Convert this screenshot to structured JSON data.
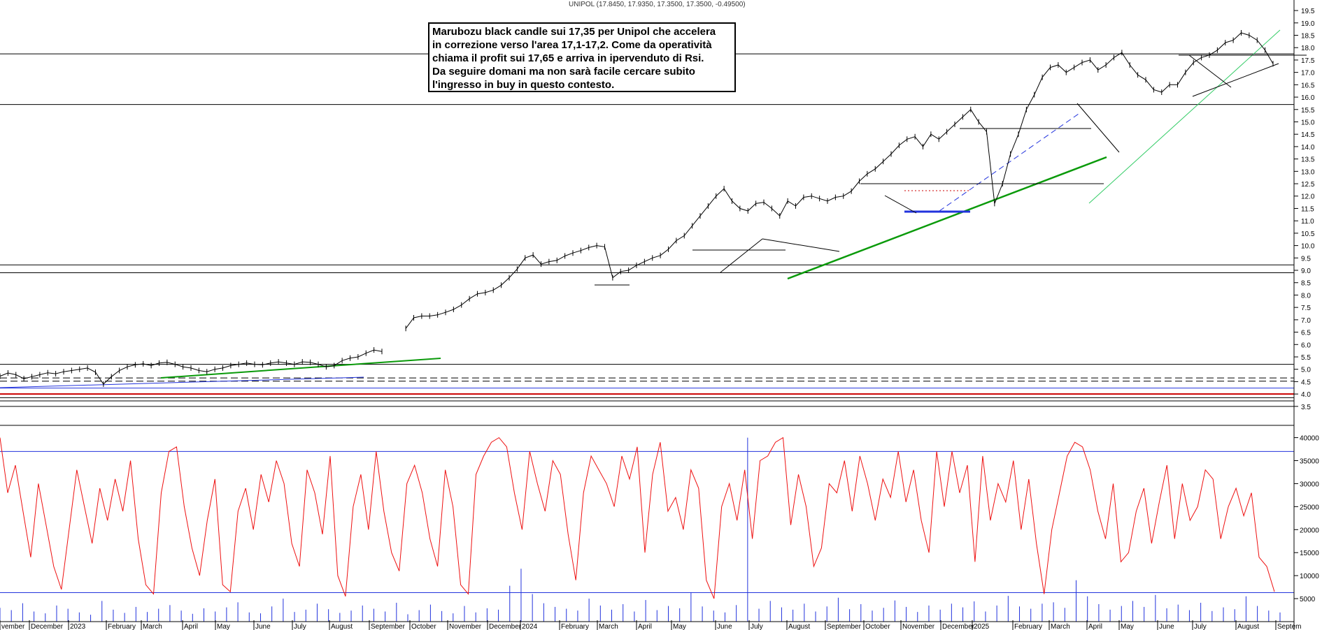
{
  "title": "UNIPOL (17.8450, 17.9350, 17.3500, 17.3500, -0.49500)",
  "annotation": {
    "lines": [
      "Marubozu black candle sui 17,35 per Unipol che accelera",
      "in correzione verso l'area 17,1-17,2. Come da operatività",
      "chiama il profit sui 17,65 e arriva in ipervenduto di Rsi.",
      "Da seguire domani ma non sarà facile cercare subito",
      "l'ingresso in buy in questo contesto."
    ]
  },
  "colors": {
    "price": "#000000",
    "support_trend": "#0a9a0a",
    "light_trend": "#33cc66",
    "blue_lines": "#2233dd",
    "red_lines": "#cc0000",
    "oscillator": "#ee1111",
    "volume": "#2233dd"
  },
  "chart_data": [
    {
      "type": "line",
      "name": "price",
      "ylim": [
        3.1,
        19.7
      ],
      "yticks": [
        3.5,
        4.0,
        4.5,
        5.0,
        5.5,
        6.0,
        6.5,
        7.0,
        7.5,
        8.0,
        8.5,
        9.0,
        9.5,
        10.0,
        10.5,
        11.0,
        11.5,
        12.0,
        12.5,
        13.0,
        13.5,
        14.0,
        14.5,
        15.0,
        15.5,
        16.0,
        16.5,
        17.0,
        17.5,
        18.0,
        18.5,
        19.0,
        19.5
      ],
      "ytick_labels": [
        "3.5",
        "4.0",
        "4.5",
        "5.0",
        "5.5",
        "6.0",
        "6.5",
        "7.0",
        "7.5",
        "8.0",
        "8.5",
        "9.0",
        "9.5",
        "10.0",
        "10.5",
        "11.0",
        "11.5",
        "12.0",
        "12.5",
        "13.0",
        "13.5",
        "14.0",
        "14.5",
        "15.0",
        "15.5",
        "16.0",
        "16.5",
        "17.0",
        "17.5",
        "18.0",
        "18.5",
        "19.0",
        "19.5"
      ],
      "xlabels": [
        "vember",
        "December",
        "2023",
        "February",
        "March",
        "April",
        "May",
        "June",
        "July",
        "August",
        "September",
        "October",
        "November",
        "December",
        "2024",
        "February",
        "March",
        "April",
        "May",
        "June",
        "July",
        "August",
        "September",
        "October",
        "November",
        "December",
        "2025",
        "February",
        "March",
        "April",
        "May",
        "June",
        "July",
        "August",
        "Septem"
      ],
      "xlabel_pos": [
        0,
        42,
        98,
        152,
        202,
        261,
        308,
        363,
        418,
        471,
        528,
        586,
        640,
        697,
        744,
        800,
        854,
        910,
        960,
        1023,
        1071,
        1125,
        1180,
        1235,
        1288,
        1345,
        1390,
        1448,
        1500,
        1554,
        1600,
        1655,
        1705,
        1767,
        1824
      ],
      "series": [
        {
          "values": [
            4.72,
            4.85,
            4.78,
            4.62,
            4.7,
            4.78,
            4.86,
            4.82,
            4.9,
            4.95,
            5.0,
            5.05,
            4.88,
            4.4,
            4.7,
            4.95,
            5.1,
            5.18,
            5.22,
            5.15,
            5.25,
            5.28,
            5.2,
            5.1,
            5.05,
            4.95,
            4.9,
            5.0,
            5.05,
            5.15,
            5.2,
            5.25,
            5.2,
            5.18,
            5.25,
            5.3,
            5.25,
            5.2,
            5.3,
            5.28,
            5.2,
            5.1,
            5.15,
            5.35,
            5.45,
            5.5,
            5.65,
            5.78,
            5.72,
            null,
            null,
            6.65,
            7.08,
            7.15,
            7.15,
            7.2,
            7.3,
            7.42,
            7.6,
            7.85,
            8.05,
            8.1,
            8.2,
            8.4,
            8.7,
            9.05,
            9.5,
            9.62,
            9.25,
            9.35,
            9.4,
            9.58,
            9.7,
            9.8,
            9.92,
            10.0,
            9.95,
            8.7,
            8.95,
            9.0,
            9.2,
            9.35,
            9.5,
            9.6,
            9.85,
            10.2,
            10.4,
            10.8,
            11.2,
            11.6,
            12.0,
            12.3,
            11.8,
            11.5,
            11.4,
            11.7,
            11.75,
            11.5,
            11.2,
            11.8,
            11.6,
            11.95,
            12.0,
            11.9,
            11.8,
            11.95,
            12.0,
            12.2,
            12.6,
            12.9,
            13.1,
            13.4,
            13.7,
            14.05,
            14.3,
            14.4,
            14.0,
            14.5,
            14.3,
            14.6,
            14.9,
            15.2,
            15.5,
            15.0,
            14.6,
            11.7,
            12.5,
            13.7,
            14.5,
            15.5,
            16.1,
            16.8,
            17.2,
            17.3,
            17.0,
            17.2,
            17.4,
            17.5,
            17.1,
            17.3,
            17.6,
            17.8,
            17.3,
            16.9,
            16.7,
            16.3,
            16.2,
            16.5,
            16.5,
            17.0,
            17.4,
            17.6,
            17.7,
            17.9,
            18.2,
            18.3,
            18.6,
            18.5,
            18.3,
            17.9,
            17.35
          ]
        }
      ],
      "horizontal_levels": [
        {
          "y": 3.5,
          "color": "black"
        },
        {
          "y": 3.72,
          "color": "black"
        },
        {
          "y": 3.85,
          "color": "black"
        },
        {
          "y": 4.0,
          "color": "red"
        },
        {
          "y": 4.24,
          "color": "blue"
        },
        {
          "y": 4.52,
          "color": "black",
          "dashed": true
        },
        {
          "y": 4.65,
          "color": "black",
          "dashed": true
        },
        {
          "y": 5.2,
          "color": "black"
        },
        {
          "y": 8.9,
          "color": "black"
        },
        {
          "y": 9.22,
          "color": "black"
        },
        {
          "y": 15.7,
          "color": "black"
        },
        {
          "y": 17.75,
          "color": "black"
        }
      ]
    },
    {
      "type": "line",
      "name": "oscillator",
      "ylim": [
        0,
        41000
      ],
      "yticks": [
        5000,
        10000,
        15000,
        20000,
        25000,
        30000,
        35000,
        40000
      ],
      "ytick_labels": [
        "5000",
        "10000",
        "15000",
        "20000",
        "25000",
        "30000",
        "35000",
        "40000"
      ],
      "levels": [
        37000,
        6300
      ],
      "values": [
        40000,
        28000,
        34000,
        24000,
        14000,
        30000,
        21000,
        12000,
        7000,
        20000,
        33000,
        25000,
        17000,
        29000,
        22000,
        31000,
        24000,
        35000,
        18000,
        8000,
        6000,
        28000,
        37000,
        38000,
        25000,
        16000,
        10000,
        22000,
        31000,
        8000,
        6500,
        24000,
        29000,
        20000,
        32000,
        26000,
        35000,
        30000,
        17000,
        12000,
        33000,
        28000,
        19000,
        36000,
        10000,
        5500,
        25000,
        32000,
        20000,
        37000,
        24000,
        15000,
        11000,
        30000,
        34000,
        28000,
        18000,
        12000,
        33000,
        25000,
        8000,
        6000,
        32000,
        36000,
        39000,
        40000,
        38000,
        28000,
        20000,
        37000,
        30000,
        24000,
        35000,
        32000,
        19000,
        9000,
        28000,
        36000,
        33000,
        30000,
        25000,
        36000,
        31000,
        38000,
        15000,
        32000,
        39000,
        24000,
        27000,
        20000,
        33000,
        29000,
        9000,
        5000,
        25000,
        30000,
        22000,
        33000,
        18000,
        35000,
        36000,
        39000,
        40000,
        21000,
        32000,
        25000,
        12000,
        16000,
        30000,
        28000,
        35000,
        24000,
        36000,
        30000,
        22000,
        31000,
        27000,
        37000,
        26000,
        33000,
        22000,
        15000,
        37000,
        25000,
        37000,
        28000,
        34000,
        13000,
        36000,
        22000,
        30000,
        26000,
        35000,
        20000,
        31000,
        17000,
        6000,
        20000,
        28000,
        36000,
        39000,
        38000,
        33000,
        24000,
        18000,
        30000,
        13000,
        15000,
        24000,
        29000,
        17000,
        26000,
        34000,
        18000,
        30000,
        22000,
        25000,
        33000,
        31000,
        18000,
        25000,
        29000,
        23000,
        28000,
        14000,
        12000,
        6500
      ]
    },
    {
      "type": "bar",
      "name": "volume",
      "ylim": [
        0,
        41000
      ],
      "note": "relative volume bars overlaid on oscillator panel",
      "values": [
        3000,
        2500,
        4000,
        2200,
        1800,
        3500,
        2800,
        2000,
        1500,
        4500,
        2600,
        1900,
        3200,
        2100,
        2800,
        3600,
        2400,
        1700,
        2900,
        2200,
        3100,
        4200,
        2000,
        1800,
        3300,
        5000,
        2100,
        2600,
        3900,
        2700,
        1900,
        2400,
        3500,
        2800,
        2200,
        4100,
        1600,
        2500,
        3700,
        2300,
        1800,
        3400,
        2000,
        2900,
        2600,
        7800,
        11500,
        6000,
        4000,
        3200,
        2800,
        2400,
        5000,
        3500,
        2600,
        3800,
        2200,
        4700,
        2500,
        3400,
        2900,
        6400,
        3300,
        2400,
        2000,
        3600,
        40000,
        2800,
        4500,
        3100,
        2600,
        3900,
        2200,
        3300,
        5200,
        2700,
        3800,
        2400,
        3000,
        4600,
        3200,
        2100,
        3500,
        2600,
        3900,
        3100,
        4400,
        2200,
        3500,
        5600,
        3300,
        2800,
        3900,
        4200,
        3000,
        9000,
        5500,
        3800,
        2600,
        3400,
        4500,
        3200,
        5800,
        2900,
        3700,
        2500,
        4100,
        2300,
        3100,
        2700,
        5500,
        3400,
        2400,
        2000
      ]
    }
  ]
}
